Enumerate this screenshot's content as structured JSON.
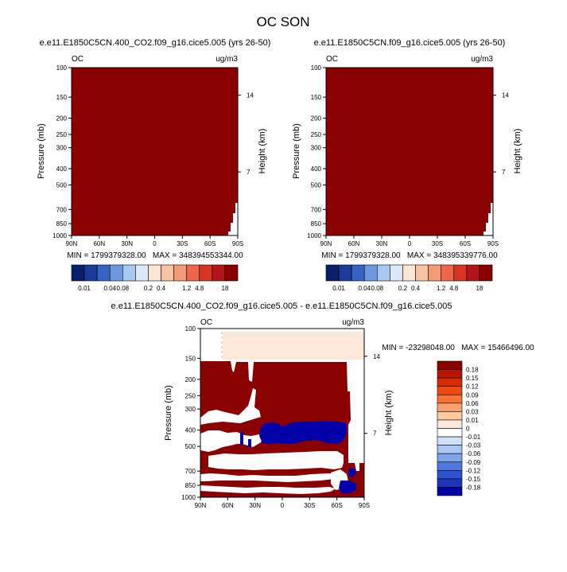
{
  "page_title": "OC SON",
  "colors": {
    "dark_red": "#8b0000",
    "light_peach": "#fde8da",
    "white": "#ffffff",
    "dark_blue": "#0000a8"
  },
  "chart_data": [
    {
      "type": "heatmap",
      "title": "e.e11.E1850C5CN.400_CO2.f09_g16.cice5.005 (yrs 26-50)",
      "left_label": "OC",
      "right_label": "ug/m3",
      "xlabel": "",
      "ylabel": "Pressure (mb)",
      "ylabel_right": "Height (km)",
      "x_ticks": [
        "90N",
        "60N",
        "30N",
        "0",
        "30S",
        "60S",
        "90S"
      ],
      "y_ticks": [
        "100",
        "150",
        "200",
        "250",
        "300",
        "400",
        "500",
        "700",
        "850",
        "1000"
      ],
      "y_ticks_right": [
        "14",
        "7"
      ],
      "ylim": [
        1000,
        100
      ],
      "y_scale": "log",
      "stats": "MIN = 1799379328.00   MAX = 348394553344.00",
      "min": 1799379328.0,
      "max": 348394553344.0,
      "fill_description": "entire field at top color level; small white area near 90S surface"
    },
    {
      "type": "heatmap",
      "title": "e.e11.E1850C5CN.f09_g16.cice5.005 (yrs 26-50)",
      "left_label": "OC",
      "right_label": "ug/m3",
      "xlabel": "",
      "ylabel": "Pressure (mb)",
      "ylabel_right": "Height (km)",
      "x_ticks": [
        "90N",
        "60N",
        "30N",
        "0",
        "30S",
        "60S",
        "90S"
      ],
      "y_ticks": [
        "100",
        "150",
        "200",
        "250",
        "300",
        "400",
        "500",
        "700",
        "850",
        "1000"
      ],
      "y_ticks_right": [
        "14",
        "7"
      ],
      "ylim": [
        1000,
        100
      ],
      "y_scale": "log",
      "stats": "MIN = 1799379328.00   MAX = 348395339776.00",
      "min": 1799379328.0,
      "max": 348395339776.0
    },
    {
      "type": "heatmap",
      "title": "e.e11.E1850C5CN.400_CO2.f09_g16.cice5.005 - e.e11.E1850C5CN.f09_g16.cice5.005",
      "left_label": "OC",
      "right_label": "ug/m3",
      "xlabel": "",
      "ylabel": "Pressure (mb)",
      "ylabel_right": "Height (km)",
      "x_ticks": [
        "90N",
        "60N",
        "30N",
        "0",
        "30S",
        "60S",
        "90S"
      ],
      "y_ticks": [
        "100",
        "150",
        "200",
        "250",
        "300",
        "400",
        "500",
        "700",
        "850",
        "1000"
      ],
      "y_ticks_right": [
        "14",
        "7"
      ],
      "ylim": [
        1000,
        100
      ],
      "y_scale": "log",
      "stats": "MIN = -23298048.00   MAX = 15466496.00",
      "min": -23298048.0,
      "max": 15466496.0
    }
  ],
  "colorbar_top": {
    "levels": [
      "0.01",
      "0.04",
      "0.08",
      "0.2",
      "0.4",
      "1.2",
      "4.8",
      "18"
    ],
    "colors": [
      "#08216b",
      "#1c3a9a",
      "#3563c6",
      "#6c98de",
      "#a8c8ef",
      "#dce9f8",
      "#fbe6d6",
      "#f8c3a5",
      "#f39a76",
      "#ec6648",
      "#d73225",
      "#b3131b",
      "#8b0000"
    ]
  },
  "colorbar_diff": {
    "levels": [
      "0.18",
      "0.15",
      "0.12",
      "0.09",
      "0.06",
      "0.03",
      "0.01",
      "0",
      "-0.01",
      "-0.03",
      "-0.06",
      "-0.09",
      "-0.12",
      "-0.15",
      "-0.18"
    ],
    "colors": [
      "#8b0000",
      "#b81400",
      "#d82b02",
      "#ee4a16",
      "#f87436",
      "#fba070",
      "#fdcaa6",
      "#fde8da",
      "#ffffff",
      "#cfe1f8",
      "#a9c5f2",
      "#7ea5ea",
      "#5078de",
      "#2e52d0",
      "#1d34b8",
      "#0000a8"
    ]
  }
}
